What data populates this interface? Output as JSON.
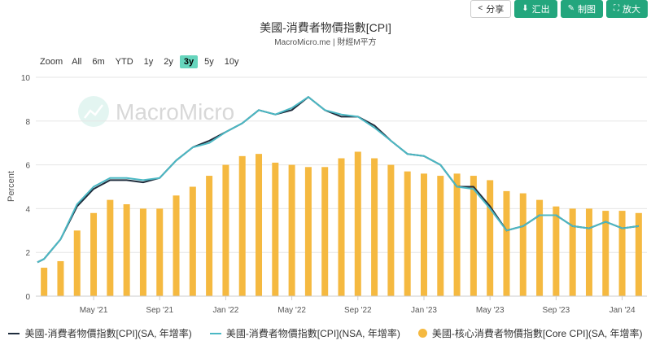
{
  "toolbar": {
    "share_label": "分享",
    "export_label": "汇出",
    "draw_label": "制图",
    "expand_label": "放大",
    "accent": "#23a67d"
  },
  "header": {
    "title": "美國-消費者物價指數[CPI]",
    "subtitle": "MacroMicro.me | 財經M平方"
  },
  "zoom": {
    "label": "Zoom",
    "options": [
      "All",
      "6m",
      "YTD",
      "1y",
      "2y",
      "3y",
      "5y",
      "10y"
    ],
    "active": "3y"
  },
  "watermark": "MacroMicro",
  "legend": {
    "items": [
      {
        "label": "美國-消費者物價指數[CPI](SA, 年增率)",
        "color": "#1f2d3d"
      },
      {
        "label": "美國-消費者物價指數[CPI](NSA, 年增率)",
        "color": "#4bb8c4"
      },
      {
        "label": "美國-核心消費者物價指數[Core CPI](SA, 年增率)",
        "color": "#f5b940"
      }
    ]
  },
  "chart_data": {
    "type": "bar+line",
    "ylabel": "Percent",
    "ylim": [
      0,
      10
    ],
    "yticks": [
      0,
      2,
      4,
      6,
      8,
      10
    ],
    "grid": true,
    "xlabels": [
      {
        "label": "May '21",
        "index": 3
      },
      {
        "label": "Sep '21",
        "index": 7
      },
      {
        "label": "Jan '22",
        "index": 11
      },
      {
        "label": "May '22",
        "index": 15
      },
      {
        "label": "Sep '22",
        "index": 19
      },
      {
        "label": "Jan '23",
        "index": 23
      },
      {
        "label": "May '23",
        "index": 27
      },
      {
        "label": "Sep '23",
        "index": 31
      },
      {
        "label": "Jan '24",
        "index": 35
      }
    ],
    "categories": [
      "Feb '21",
      "Mar '21",
      "Apr '21",
      "May '21",
      "Jun '21",
      "Jul '21",
      "Aug '21",
      "Sep '21",
      "Oct '21",
      "Nov '21",
      "Dec '21",
      "Jan '22",
      "Feb '22",
      "Mar '22",
      "Apr '22",
      "May '22",
      "Jun '22",
      "Jul '22",
      "Aug '22",
      "Sep '22",
      "Oct '22",
      "Nov '22",
      "Dec '22",
      "Jan '23",
      "Feb '23",
      "Mar '23",
      "Apr '23",
      "May '23",
      "Jun '23",
      "Jul '23",
      "Aug '23",
      "Sep '23",
      "Oct '23",
      "Nov '23",
      "Dec '23",
      "Jan '24",
      "Feb '24"
    ],
    "series": [
      {
        "name": "美國-核心消費者物價指數[Core CPI](SA, 年增率)",
        "kind": "bar",
        "color": "#f5b940",
        "values": [
          1.3,
          1.6,
          3.0,
          3.8,
          4.4,
          4.2,
          4.0,
          4.0,
          4.6,
          5.0,
          5.5,
          6.0,
          6.4,
          6.5,
          6.1,
          6.0,
          5.9,
          5.9,
          6.3,
          6.6,
          6.3,
          6.0,
          5.7,
          5.6,
          5.5,
          5.6,
          5.5,
          5.3,
          4.8,
          4.7,
          4.4,
          4.1,
          4.0,
          4.0,
          3.9,
          3.9,
          3.8
        ]
      },
      {
        "name": "美國-消費者物價指數[CPI](SA, 年增率)",
        "kind": "line",
        "color": "#1f2d3d",
        "values": [
          1.7,
          2.6,
          4.1,
          4.9,
          5.3,
          5.3,
          5.2,
          5.4,
          6.2,
          6.8,
          7.1,
          7.5,
          7.9,
          8.5,
          8.3,
          8.5,
          9.1,
          8.5,
          8.2,
          8.2,
          7.8,
          7.1,
          6.5,
          6.4,
          6.0,
          5.0,
          5.0,
          4.1,
          3.0,
          3.2,
          3.7,
          3.7,
          3.2,
          3.1,
          3.4,
          3.1,
          3.2
        ]
      },
      {
        "name": "美國-消費者物價指數[CPI](NSA, 年增率)",
        "kind": "line",
        "color": "#4bb8c4",
        "values": [
          1.7,
          2.6,
          4.2,
          5.0,
          5.4,
          5.4,
          5.3,
          5.4,
          6.2,
          6.8,
          7.0,
          7.5,
          7.9,
          8.5,
          8.3,
          8.6,
          9.1,
          8.5,
          8.3,
          8.2,
          7.7,
          7.1,
          6.5,
          6.4,
          6.0,
          5.0,
          4.9,
          4.0,
          3.0,
          3.2,
          3.7,
          3.7,
          3.2,
          3.1,
          3.4,
          3.1,
          3.2
        ]
      }
    ]
  }
}
